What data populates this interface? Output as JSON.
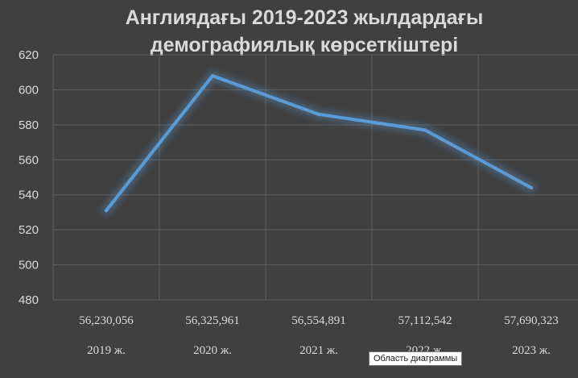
{
  "chart_data": {
    "type": "line",
    "title_lines": [
      "Англиядағы 2019-2023 жылдардағы",
      "демографиялық көрсеткіштері"
    ],
    "value_labels": [
      "56,230,056",
      "56,325,961",
      "56,554,891",
      "57,112,542",
      "57,690,323"
    ],
    "categories": [
      "2019 ж.",
      "2020 ж.",
      "2021 ж.",
      "2022 ж.",
      "2023 ж."
    ],
    "values": [
      531,
      608,
      586,
      577,
      544
    ],
    "ylim": [
      480,
      620
    ],
    "yticks": [
      480,
      500,
      520,
      540,
      560,
      580,
      600,
      620
    ],
    "grid": true,
    "legend": "none",
    "line_color": "#5b9bd5",
    "glow_color": "#5b9bd5"
  },
  "tooltip": {
    "text": "Область диаграммы"
  }
}
